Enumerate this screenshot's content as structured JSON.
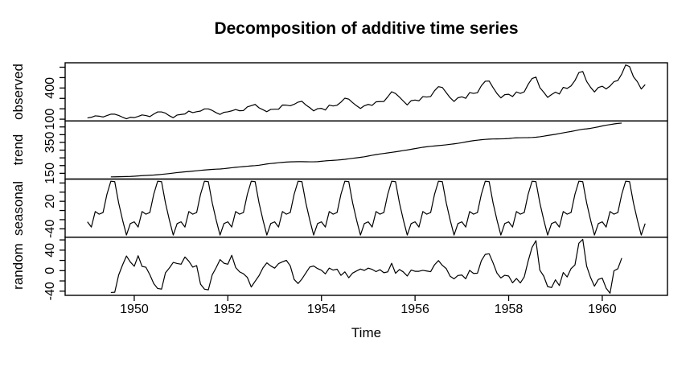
{
  "title": "Decomposition of additive time series",
  "axes": {
    "x_label": "Time",
    "x_ticks": [
      1950,
      1952,
      1954,
      1956,
      1958,
      1960
    ]
  },
  "colors": {
    "line": "#000000",
    "frame": "#000000",
    "text": "#000000",
    "background": "#ffffff"
  },
  "chart_data": {
    "type": "line",
    "title": "Decomposition of additive time series",
    "xlabel": "Time",
    "x_start_year": 1949,
    "frequency": 12,
    "x_range": [
      1949.0,
      1960.9167
    ],
    "x_ticks": [
      1950,
      1952,
      1954,
      1956,
      1958,
      1960
    ],
    "grid": false,
    "legend": "none",
    "panels": [
      {
        "key": "observed",
        "ylabel": "observed",
        "y_ticks": [
          100,
          200,
          300,
          400,
          500,
          600
        ],
        "y_tick_labels_shown": [
          100,
          400
        ]
      },
      {
        "key": "trend",
        "ylabel": "trend",
        "y_ticks": [
          150,
          200,
          250,
          300,
          350,
          400,
          450
        ],
        "y_tick_labels_shown": [
          150,
          350
        ]
      },
      {
        "key": "seasonal",
        "ylabel": "seasonal",
        "y_ticks": [
          -40,
          -20,
          0,
          20,
          40,
          60
        ],
        "y_tick_labels_shown": [
          -40,
          20
        ]
      },
      {
        "key": "random",
        "ylabel": "random",
        "y_ticks": [
          -40,
          -20,
          0,
          20,
          40,
          60
        ],
        "y_tick_labels_shown": [
          -40,
          0,
          40
        ]
      }
    ],
    "series": {
      "observed": [
        112,
        118,
        132,
        129,
        121,
        135,
        148,
        148,
        136,
        119,
        104,
        118,
        115,
        126,
        141,
        135,
        125,
        149,
        170,
        170,
        158,
        133,
        114,
        140,
        145,
        150,
        178,
        163,
        172,
        178,
        199,
        199,
        184,
        162,
        146,
        166,
        171,
        180,
        193,
        181,
        183,
        218,
        230,
        242,
        209,
        191,
        172,
        194,
        196,
        196,
        236,
        235,
        229,
        243,
        264,
        272,
        237,
        211,
        180,
        201,
        204,
        188,
        235,
        227,
        234,
        264,
        302,
        293,
        259,
        229,
        203,
        229,
        242,
        233,
        267,
        269,
        270,
        315,
        364,
        347,
        312,
        274,
        237,
        278,
        284,
        277,
        317,
        313,
        318,
        374,
        413,
        405,
        355,
        306,
        271,
        306,
        315,
        301,
        356,
        348,
        355,
        422,
        465,
        467,
        404,
        347,
        305,
        336,
        340,
        318,
        362,
        348,
        363,
        435,
        491,
        505,
        404,
        359,
        310,
        337,
        360,
        342,
        406,
        396,
        420,
        472,
        548,
        559,
        463,
        407,
        362,
        405,
        417,
        391,
        419,
        461,
        472,
        535,
        622,
        606,
        508,
        461,
        390,
        432
      ],
      "trend": [
        null,
        null,
        null,
        null,
        null,
        null,
        126.79,
        127.25,
        127.96,
        128.58,
        129.0,
        129.75,
        131.25,
        133.08,
        134.92,
        136.42,
        137.42,
        138.75,
        140.92,
        143.17,
        145.71,
        148.42,
        151.54,
        154.71,
        157.13,
        159.54,
        161.83,
        164.13,
        166.67,
        169.08,
        171.25,
        173.58,
        175.46,
        176.83,
        178.04,
        180.17,
        183.13,
        186.21,
        189.04,
        191.29,
        193.58,
        195.83,
        198.04,
        199.75,
        202.21,
        206.25,
        210.42,
        213.38,
        215.83,
        218.5,
        220.92,
        222.92,
        224.08,
        224.71,
        225.33,
        225.33,
        224.96,
        224.58,
        224.46,
        225.54,
        228.0,
        230.46,
        232.25,
        233.92,
        235.63,
        237.75,
        240.5,
        243.96,
        247.17,
        250.25,
        253.5,
        257.13,
        261.83,
        266.67,
        271.13,
        275.21,
        278.5,
        281.96,
        285.75,
        289.33,
        293.25,
        297.17,
        301.0,
        305.46,
        309.96,
        314.42,
        318.63,
        321.75,
        324.5,
        327.08,
        329.54,
        331.83,
        334.46,
        337.54,
        340.54,
        344.08,
        348.25,
        353.0,
        357.63,
        361.38,
        364.5,
        367.17,
        369.46,
        371.21,
        372.17,
        372.42,
        372.75,
        373.63,
        375.25,
        377.92,
        379.5,
        380.0,
        380.71,
        380.96,
        381.83,
        383.67,
        386.5,
        390.33,
        394.71,
        398.63,
        402.54,
        407.17,
        411.88,
        416.33,
        420.5,
        425.5,
        430.71,
        435.13,
        437.71,
        440.96,
        445.83,
        450.63,
        456.33,
        461.38,
        465.21,
        469.33,
        472.75,
        475.04,
        null,
        null,
        null,
        null,
        null,
        null
      ],
      "seasonal_figure": [
        -24.75,
        -36.19,
        -2.24,
        -8.04,
        -4.51,
        35.4,
        63.83,
        62.82,
        16.52,
        -20.64,
        -53.59,
        -28.62
      ],
      "random": [
        null,
        null,
        null,
        null,
        null,
        null,
        -42.62,
        -42.07,
        -8.48,
        11.06,
        28.59,
        16.87,
        8.5,
        29.11,
        8.32,
        6.62,
        -7.91,
        -25.15,
        -34.75,
        -35.99,
        -4.23,
        5.22,
        16.05,
        13.91,
        12.62,
        26.65,
        18.41,
        6.91,
        9.84,
        -26.48,
        -36.08,
        -37.4,
        -7.98,
        5.81,
        21.55,
        14.45,
        12.62,
        29.98,
        6.2,
        -2.25,
        -6.07,
        -13.23,
        -31.87,
        -20.57,
        -9.73,
        5.39,
        15.17,
        9.24,
        4.92,
        13.69,
        17.32,
        20.12,
        9.43,
        -17.11,
        -25.16,
        -16.15,
        -4.48,
        7.06,
        9.13,
        4.08,
        0.75,
        -6.27,
        4.99,
        1.12,
        2.88,
        -9.15,
        -2.33,
        -13.78,
        -4.69,
        -0.61,
        3.09,
        0.49,
        4.92,
        2.52,
        -1.89,
        1.83,
        -3.99,
        -2.36,
        14.42,
        -5.15,
        2.23,
        -2.53,
        -10.41,
        1.16,
        -1.21,
        -1.23,
        0.61,
        -0.71,
        -1.99,
        11.52,
        19.63,
        10.35,
        4.02,
        -10.9,
        -15.95,
        -9.46,
        -8.5,
        -15.81,
        0.61,
        -5.34,
        -4.99,
        19.43,
        31.71,
        32.97,
        15.31,
        -4.78,
        -14.16,
        -9.01,
        -10.5,
        -23.73,
        -15.26,
        -23.96,
        -12.2,
        18.64,
        45.34,
        58.51,
        0.98,
        -10.69,
        -31.12,
        -33.01,
        -17.79,
        -28.98,
        -3.64,
        -12.29,
        4.01,
        11.1,
        53.46,
        61.05,
        8.77,
        -13.32,
        -30.24,
        -17.01,
        -14.58,
        -34.19,
        -43.97,
        -0.29,
        3.76,
        24.56,
        null,
        null,
        null,
        null,
        null,
        null
      ]
    }
  }
}
